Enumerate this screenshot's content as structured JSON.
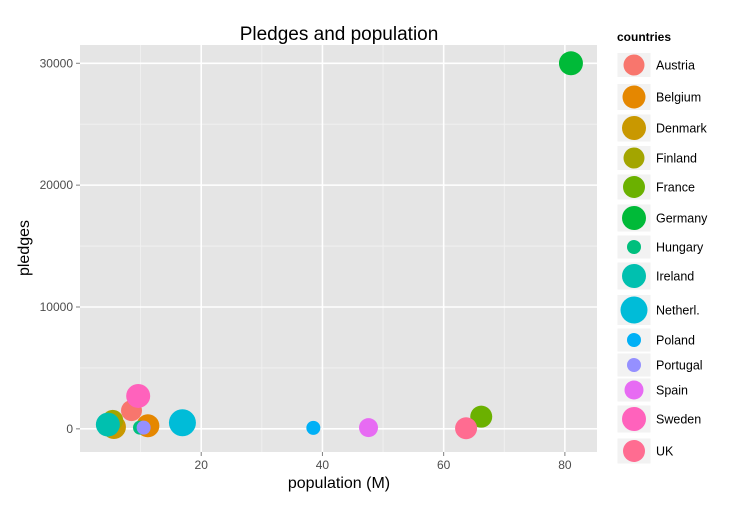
{
  "chart_data": {
    "type": "scatter",
    "title": "Pledges and population",
    "xlabel": "population (M)",
    "ylabel": "pledges",
    "xlim": [
      0,
      85.3
    ],
    "ylim": [
      -1900,
      31500
    ],
    "x_ticks": [
      20,
      40,
      60,
      80
    ],
    "y_ticks": [
      0,
      10000,
      20000,
      30000
    ],
    "grid": true,
    "legend": {
      "title": "countries",
      "position": "right"
    },
    "points": [
      {
        "country": "Austria",
        "x": 8.5,
        "y": 1500,
        "r": 10.5,
        "color": "#F8766D"
      },
      {
        "country": "Belgium",
        "x": 11.2,
        "y": 250,
        "r": 11.5,
        "color": "#E58700"
      },
      {
        "country": "Denmark",
        "x": 5.6,
        "y": 150,
        "r": 12,
        "color": "#C99800"
      },
      {
        "country": "Finland",
        "x": 5.4,
        "y": 700,
        "r": 10.5,
        "color": "#A3A500"
      },
      {
        "country": "France",
        "x": 66.2,
        "y": 1000,
        "r": 11,
        "color": "#6BB100"
      },
      {
        "country": "Germany",
        "x": 81.0,
        "y": 30000,
        "r": 12,
        "color": "#00BA38"
      },
      {
        "country": "Hungary",
        "x": 9.9,
        "y": 100,
        "r": 7,
        "color": "#00BF7D"
      },
      {
        "country": "Ireland",
        "x": 4.6,
        "y": 350,
        "r": 12,
        "color": "#00C0AF"
      },
      {
        "country": "Netherl.",
        "x": 16.9,
        "y": 500,
        "r": 13.5,
        "color": "#00BCD8"
      },
      {
        "country": "Poland",
        "x": 38.5,
        "y": 80,
        "r": 7,
        "color": "#00B0F6"
      },
      {
        "country": "Portugal",
        "x": 10.5,
        "y": 100,
        "r": 7,
        "color": "#9590FF"
      },
      {
        "country": "Spain",
        "x": 47.6,
        "y": 100,
        "r": 9.5,
        "color": "#E76BF3"
      },
      {
        "country": "Sweden",
        "x": 9.6,
        "y": 2700,
        "r": 12,
        "color": "#FF62BC"
      },
      {
        "country": "UK",
        "x": 63.7,
        "y": 50,
        "r": 11,
        "color": "#FF6C91"
      }
    ]
  }
}
